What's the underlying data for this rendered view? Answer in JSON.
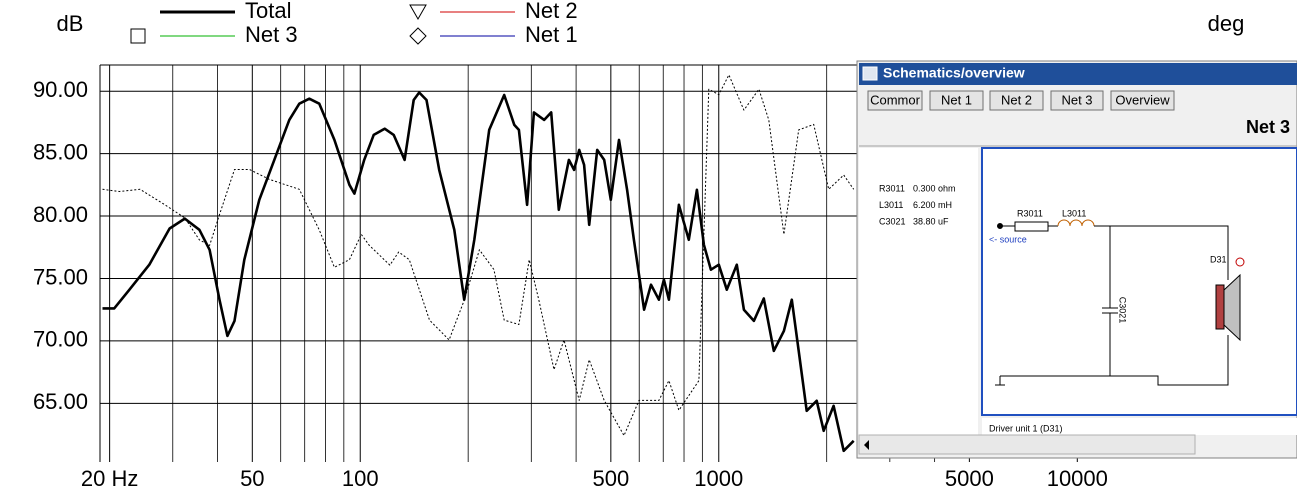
{
  "chart_data": {
    "type": "line",
    "y_label": "dB",
    "y2_label": "deg",
    "legend": [
      {
        "name": "Total",
        "color": "#000000",
        "marker": "none"
      },
      {
        "name": "Net 3",
        "color": "#00b000",
        "marker": "square"
      },
      {
        "name": "Net 2",
        "color": "#d00000",
        "marker": "triangle"
      },
      {
        "name": "Net 1",
        "color": "#0000a0",
        "marker": "diamond"
      }
    ],
    "xscale": "log",
    "xlim": [
      18.8,
      41000
    ],
    "xticks": [
      {
        "value": 20,
        "label": "20 Hz"
      },
      50,
      100,
      500,
      1000,
      5000,
      10000
    ],
    "xgrid": [
      30,
      40,
      60,
      70,
      80,
      90,
      200,
      300,
      400,
      600,
      700,
      800,
      900,
      2000,
      3000,
      4000
    ],
    "ylim": [
      60.3,
      92.1
    ],
    "yticks": [
      {
        "value": 65,
        "label": "65.00"
      },
      {
        "value": 70,
        "label": "70.00"
      },
      {
        "value": 75,
        "label": "75.00"
      },
      {
        "value": 80,
        "label": "80.00"
      },
      {
        "value": 85,
        "label": "85.00"
      },
      {
        "value": 90,
        "label": "90.00"
      }
    ],
    "y2lim": [
      -186,
      175
    ],
    "grid": true,
    "series": [
      {
        "color": "#000000",
        "style": "solid",
        "x": [
          19.1,
          20.6,
          22.7,
          25.8,
          29.4,
          32.4,
          35.6,
          38.0,
          40.5,
          42.6,
          44.6,
          47.5,
          52.3,
          57.6,
          63.4,
          67.6,
          72.1,
          76.9,
          84.7,
          93.3,
          96.3,
          102.6,
          109,
          117,
          124,
          133,
          141,
          146,
          153,
          166,
          183,
          195,
          208,
          229,
          252,
          269,
          277,
          292,
          305,
          326,
          341,
          358,
          382,
          395,
          408,
          421,
          435,
          458,
          479,
          500,
          527,
          555,
          580,
          619,
          647,
          681,
          703,
          726,
          774,
          825,
          869,
          909,
          951,
          1000,
          1053,
          1123,
          1175,
          1253,
          1335,
          1424,
          1519,
          1598,
          1671,
          1759,
          1876,
          1962,
          2091,
          2231,
          2378
        ],
        "values": [
          72.6,
          72.6,
          74.1,
          76.1,
          79.0,
          79.8,
          78.9,
          77.3,
          73.3,
          70.4,
          71.6,
          76.5,
          81.3,
          84.5,
          87.7,
          89.0,
          89.4,
          89.0,
          86.1,
          82.5,
          81.8,
          84.5,
          86.5,
          87.0,
          86.5,
          84.5,
          89.3,
          89.9,
          89.3,
          83.7,
          78.9,
          73.3,
          78.1,
          86.9,
          89.7,
          87.3,
          86.9,
          80.9,
          88.3,
          87.7,
          88.3,
          80.5,
          84.5,
          83.7,
          85.3,
          84.1,
          79.3,
          85.3,
          84.5,
          81.3,
          86.1,
          82.1,
          78.1,
          72.5,
          74.5,
          73.3,
          74.9,
          73.3,
          80.9,
          78.1,
          82.1,
          77.7,
          75.7,
          76.1,
          74.1,
          76.1,
          72.5,
          71.6,
          73.4,
          69.2,
          70.8,
          73.3,
          69.2,
          64.4,
          65.2,
          62.8,
          64.8,
          61.2,
          62.0
        ]
      },
      {
        "color": "#000000",
        "style": "dotted",
        "axis": "y2",
        "x": [
          19.1,
          21.3,
          24.3,
          28.5,
          32.4,
          35.6,
          38.0,
          40.5,
          44.6,
          49.1,
          55.8,
          67.6,
          76.9,
          84.7,
          93.3,
          100.7,
          106,
          121,
          128,
          137,
          156,
          177,
          195,
          215,
          236,
          252,
          277,
          296,
          315,
          347,
          370,
          408,
          435,
          479,
          544,
          599,
          681,
          726,
          774,
          880,
          938,
          1000,
          1067,
          1175,
          1294,
          1379,
          1519,
          1671,
          1840,
          2026,
          2231,
          2378
        ],
        "values": [
          62,
          60,
          62,
          48,
          36,
          16,
          11,
          39,
          80,
          80,
          71,
          62,
          25,
          -9,
          -2,
          21,
          11,
          -7,
          5,
          -2,
          -57,
          -75,
          -39,
          7,
          -11,
          -57,
          -61,
          -2,
          -39,
          -102,
          -75,
          -130,
          -93,
          -130,
          -162,
          -130,
          -130,
          -112,
          -139,
          -112,
          153,
          148,
          166,
          134,
          153,
          125,
          21,
          116,
          121,
          62,
          75,
          62
        ]
      }
    ]
  },
  "window": {
    "title": "Schematics/overview",
    "buttons": [
      "Commor",
      "Net 1",
      "Net 2",
      "Net 3",
      "Overview"
    ],
    "active_net": "Net 3",
    "components": [
      {
        "name": "R3011",
        "value": "0.300 ohm"
      },
      {
        "name": "L3011",
        "value": "6.200 mH"
      },
      {
        "name": "C3021",
        "value": "38.80 uF"
      }
    ],
    "schematic": {
      "resistor": "R3011",
      "inductor": "L3011",
      "source": "<- source",
      "driver": "D31",
      "capacitor": "C3021"
    },
    "status": "Driver unit 1 (D31)"
  }
}
